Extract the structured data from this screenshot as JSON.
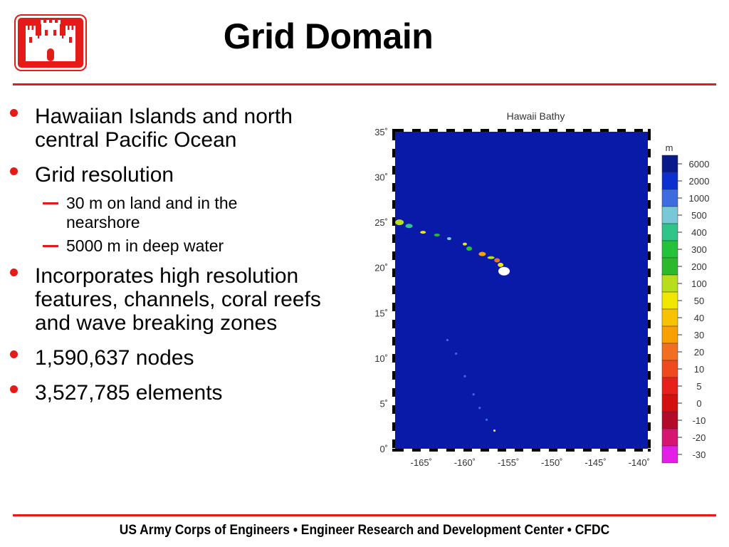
{
  "title": "Grid Domain",
  "footer": "US Army Corps of Engineers • Engineer Research and Development Center • CFDC",
  "bullets": [
    {
      "level": 1,
      "text": "Hawaiian Islands and north central Pacific Ocean",
      "lines": [
        "Hawaiian Islands and north",
        "central Pacific Ocean"
      ]
    },
    {
      "level": 1,
      "text": "Grid resolution",
      "lines": [
        "Grid resolution"
      ]
    },
    {
      "level": 2,
      "text": "30 m on land and in the nearshore",
      "lines": [
        "30 m on land and in the",
        "nearshore"
      ]
    },
    {
      "level": 2,
      "text": "5000 m in deep water",
      "lines": [
        "5000 m in deep water"
      ]
    },
    {
      "level": 1,
      "text": "Incorporates high resolution features, channels, coral reefs and wave breaking zones",
      "lines": [
        "Incorporates high resolution",
        "features, channels, coral reefs",
        "and wave breaking zones"
      ]
    },
    {
      "level": 1,
      "text": "1,590,637 nodes",
      "lines": [
        "1,590,637 nodes"
      ]
    },
    {
      "level": 1,
      "text": "3,527,785 elements",
      "lines": [
        "3,527,785 elements"
      ]
    }
  ],
  "colors": {
    "accent": "#e41b17",
    "ocean": "#0a1aa8"
  },
  "chart_data": {
    "type": "heatmap",
    "title": "Hawaii Bathy",
    "xlabel": "",
    "ylabel": "",
    "xlim": [
      -168,
      -139
    ],
    "ylim": [
      0,
      35
    ],
    "x_ticks": [
      -165,
      -160,
      -155,
      -150,
      -145,
      -140
    ],
    "x_tick_labels": [
      "-165˚",
      "-160˚",
      "-155˚",
      "-150˚",
      "-145˚",
      "-140˚"
    ],
    "y_ticks": [
      0,
      5,
      10,
      15,
      20,
      25,
      30,
      35
    ],
    "y_tick_labels": [
      "0˚",
      "5˚",
      "10˚",
      "15˚",
      "20˚",
      "25˚",
      "30˚",
      "35˚"
    ],
    "colorbar": {
      "unit": "m",
      "levels": [
        "6000",
        "2000",
        "1000",
        "500",
        "400",
        "300",
        "200",
        "100",
        "50",
        "40",
        "30",
        "20",
        "10",
        "5",
        "0",
        "-10",
        "-20",
        "-30"
      ],
      "colors": [
        "#081a8a",
        "#0c2fd0",
        "#3e6ce0",
        "#78c8d8",
        "#2fc58a",
        "#24c23a",
        "#2cb82c",
        "#b7de1a",
        "#f0e600",
        "#f7c200",
        "#f7a000",
        "#f26e20",
        "#ee4a1e",
        "#e8201c",
        "#d40f0f",
        "#b30a2a",
        "#d61570",
        "#e31ee6"
      ]
    }
  }
}
